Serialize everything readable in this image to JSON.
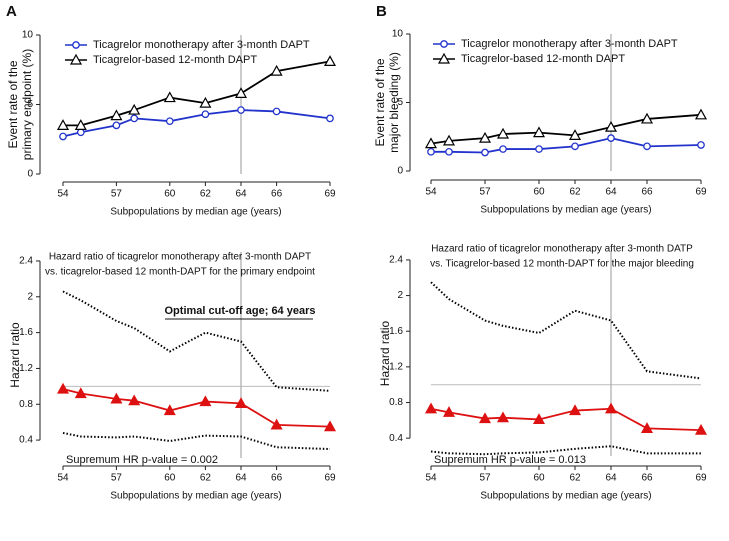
{
  "chart_data": [
    {
      "type": "line",
      "panel": "A",
      "ylabel_lines": [
        "Event rate of the",
        "primary endpoint  (%)"
      ],
      "xlabel": "Subpopulations by median age (years)",
      "x": [
        54,
        55,
        57,
        58,
        60,
        62,
        64,
        66,
        69
      ],
      "xlim": [
        54,
        69
      ],
      "xticks": [
        54,
        57,
        60,
        62,
        64,
        66,
        69
      ],
      "ylim": [
        0,
        10
      ],
      "yticks": [
        0,
        5,
        10
      ],
      "vline": 64,
      "series": [
        {
          "name": "Ticagrelor monotherapy after 3-month DAPT",
          "color": "#2233cc",
          "marker": "circle",
          "values": [
            2.7,
            3.0,
            3.5,
            4.0,
            3.8,
            4.3,
            4.6,
            4.5,
            4.0
          ]
        },
        {
          "name": "Ticagrelor-based 12-month DAPT",
          "color": "#000000",
          "marker": "triangle",
          "values": [
            3.5,
            3.5,
            4.2,
            4.6,
            5.5,
            5.1,
            5.8,
            7.4,
            8.1
          ]
        }
      ]
    },
    {
      "type": "line",
      "panel": "B",
      "ylabel_lines": [
        "Event rate of the",
        "major bleeding (%)"
      ],
      "xlabel": "Subpopulations by median age (years)",
      "x": [
        54,
        55,
        57,
        58,
        60,
        62,
        64,
        66,
        69
      ],
      "xlim": [
        54,
        69
      ],
      "xticks": [
        54,
        57,
        60,
        62,
        64,
        66,
        69
      ],
      "ylim": [
        0,
        10
      ],
      "yticks": [
        0,
        5,
        10
      ],
      "vline": 64,
      "series": [
        {
          "name": "Ticagrelor monotherapy after 3-month DAPT",
          "color": "#2233cc",
          "marker": "circle",
          "values": [
            1.4,
            1.4,
            1.35,
            1.6,
            1.6,
            1.8,
            2.4,
            1.8,
            1.9
          ]
        },
        {
          "name": "Ticagrelor-based 12-month DAPT",
          "color": "#000000",
          "marker": "triangle",
          "values": [
            2.0,
            2.2,
            2.4,
            2.7,
            2.8,
            2.6,
            3.2,
            3.8,
            4.1
          ]
        }
      ]
    },
    {
      "type": "line",
      "title_lines": [
        "Hazard ratio of ticagrelor monotherapy after 3-month DAPT",
        "vs. ticagrelor-based 12 month-DAPT for the primary endpoint"
      ],
      "ylabel_lines": [
        "Hazard ratio"
      ],
      "xlabel": "Subpopulations by median age (years)",
      "annotation": "Optimal cut-off age; 64 years",
      "note": "Supremum HR p-value = 0.002",
      "x": [
        54,
        55,
        57,
        58,
        60,
        62,
        64,
        66,
        69
      ],
      "xlim": [
        54,
        69
      ],
      "xticks": [
        54,
        57,
        60,
        62,
        64,
        66,
        69
      ],
      "ylim": [
        0.2,
        2.5
      ],
      "yticks": [
        0.4,
        0.8,
        1.2,
        1.6,
        2.0,
        2.4
      ],
      "vline": 64,
      "hline": 1,
      "series": [
        {
          "color": "#000000",
          "dash": "dotted",
          "values": [
            2.06,
            1.96,
            1.73,
            1.65,
            1.39,
            1.6,
            1.5,
            0.99,
            0.95
          ]
        },
        {
          "color": "#dd1111",
          "marker": "triangle-filled",
          "values": [
            0.97,
            0.92,
            0.86,
            0.84,
            0.73,
            0.83,
            0.81,
            0.57,
            0.55
          ]
        },
        {
          "color": "#000000",
          "dash": "dotted",
          "values": [
            0.48,
            0.44,
            0.43,
            0.44,
            0.39,
            0.45,
            0.44,
            0.32,
            0.3
          ]
        }
      ]
    },
    {
      "type": "line",
      "title_lines": [
        "Hazard ratio of ticagrelor monotherapy after 3-month DATP",
        "vs. Ticagrelor-based 12 month-DAPT for the major bleeding"
      ],
      "ylabel_lines": [
        "Hazard ratio"
      ],
      "xlabel": "Subpopulations by median age (years)",
      "note": "Supremum HR p-value = 0.013",
      "x": [
        54,
        55,
        57,
        58,
        60,
        62,
        64,
        66,
        69
      ],
      "xlim": [
        54,
        69
      ],
      "xticks": [
        54,
        57,
        60,
        62,
        64,
        66,
        69
      ],
      "ylim": [
        0.2,
        2.5
      ],
      "yticks": [
        0.4,
        0.8,
        1.2,
        1.6,
        2.0,
        2.4
      ],
      "vline": 64,
      "hline": 1,
      "series": [
        {
          "color": "#000000",
          "dash": "dotted",
          "values": [
            2.15,
            1.96,
            1.72,
            1.66,
            1.58,
            1.83,
            1.72,
            1.15,
            1.07
          ]
        },
        {
          "color": "#dd1111",
          "marker": "triangle-filled",
          "values": [
            0.73,
            0.69,
            0.62,
            0.63,
            0.61,
            0.71,
            0.73,
            0.51,
            0.49
          ]
        },
        {
          "color": "#000000",
          "dash": "dotted",
          "values": [
            0.25,
            0.23,
            0.22,
            0.23,
            0.24,
            0.28,
            0.31,
            0.23,
            0.23
          ]
        }
      ]
    }
  ]
}
